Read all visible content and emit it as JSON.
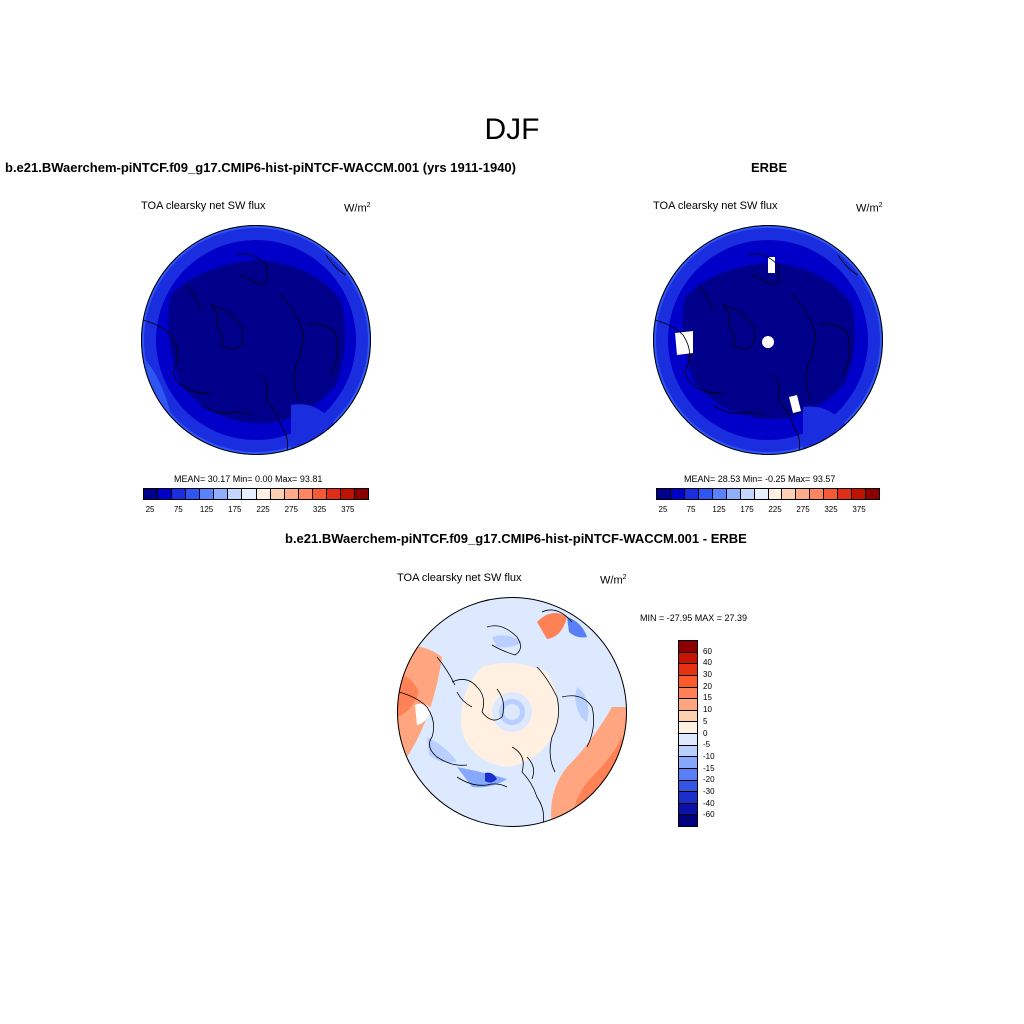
{
  "season": "DJF",
  "top_left": {
    "title": "b.e21.BWaerchem-piNTCF.f09_g17.CMIP6-hist-piNTCF-WACCM.001 (yrs 1911-1940)",
    "field": "TOA clearsky net SW flux",
    "units_base": "W/m",
    "units_exp": "2",
    "stats": "MEAN=  30.17  Min=   0.00  Max=  93.81"
  },
  "top_right": {
    "title": "ERBE",
    "field": "TOA clearsky net SW flux",
    "units_base": "W/m",
    "units_exp": "2",
    "stats": "MEAN=  28.53  Min=  -0.25  Max=  93.57"
  },
  "diff": {
    "title": "b.e21.BWaerchem-piNTCF.f09_g17.CMIP6-hist-piNTCF-WACCM.001 - ERBE",
    "field": "TOA clearsky net SW flux",
    "units_base": "W/m",
    "units_exp": "2",
    "minmax": "MIN = -27.95 MAX =  27.39"
  },
  "colorbar_abs": {
    "colors": [
      "#00008b",
      "#0000c8",
      "#1a2ee0",
      "#2f55f2",
      "#5a82ff",
      "#8fb0ff",
      "#c3d6ff",
      "#e6f0ff",
      "#fff0e4",
      "#ffcfb3",
      "#ffab8a",
      "#ff8560",
      "#f55a35",
      "#e02d15",
      "#c01200",
      "#8b0000"
    ],
    "ticks": [
      "25",
      "75",
      "125",
      "175",
      "225",
      "275",
      "325",
      "375"
    ]
  },
  "colorbar_diff": {
    "colors": [
      "#8b0000",
      "#c81400",
      "#e63210",
      "#ff5a2e",
      "#ff8156",
      "#ffa680",
      "#ffcfae",
      "#fff0e2",
      "#dde9ff",
      "#b8cfff",
      "#86a9ff",
      "#587ff5",
      "#3355e6",
      "#1a2fcc",
      "#0b10a8",
      "#000080"
    ],
    "ticks": [
      "60",
      "40",
      "30",
      "20",
      "15",
      "10",
      "5",
      "0",
      "-5",
      "-10",
      "-15",
      "-20",
      "-30",
      "-40",
      "-60"
    ]
  }
}
